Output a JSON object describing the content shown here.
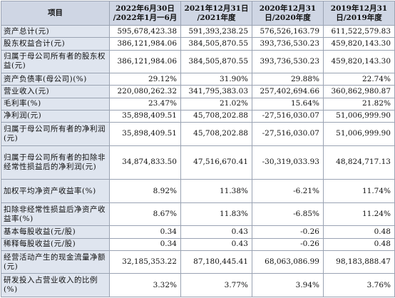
{
  "table": {
    "headers": [
      [
        "项目"
      ],
      [
        "2022年6月30日",
        "/2022年1月一6月"
      ],
      [
        "2021年12月31日",
        "/2021年度"
      ],
      [
        "2020年12月31",
        "日/2020年度"
      ],
      [
        "2019年12月31",
        "日/2019年度"
      ]
    ],
    "rows": [
      {
        "label": "资产总计(元)",
        "values": [
          "595,678,423.38",
          "591,393,238.25",
          "576,526,163.79",
          "611,522,579.83"
        ]
      },
      {
        "label": "股东权益合计(元)",
        "values": [
          "386,121,984.06",
          "384,505,870.55",
          "393,736,530.23",
          "459,820,143.30"
        ]
      },
      {
        "label": "归属于母公司所有者的股东权益(元)",
        "values": [
          "386,121,984.06",
          "384,505,870.55",
          "393,736,530.23",
          "459,820,143.30"
        ]
      },
      {
        "label": "资产负债率(母公司)(%)",
        "values": [
          "29.12%",
          "31.90%",
          "29.88%",
          "22.74%"
        ]
      },
      {
        "label": "营业收入(元)",
        "values": [
          "220,080,262.32",
          "341,795,383.03",
          "257,402,694.66",
          "360,862,980.87"
        ]
      },
      {
        "label": "毛利率(%)",
        "values": [
          "23.47%",
          "21.02%",
          "15.64%",
          "21.82%"
        ]
      },
      {
        "label": "净利润(元)",
        "values": [
          "35,898,409.51",
          "45,708,202.88",
          "-27,516,030.07",
          "51,006,999.90"
        ]
      },
      {
        "label": "归属于母公司所有者的净利润(元)",
        "values": [
          "35,898,409.51",
          "45,708,202.88",
          "-27,516,030.07",
          "51,006,999.90"
        ]
      },
      {
        "label": "归属于母公司所有者的扣除非经常性损益后的净利润(元)",
        "values": [
          "34,874,833.50",
          "47,516,670.41",
          "-30,319,033.93",
          "48,824,717.13"
        ]
      },
      {
        "label": "加权平均净资产收益率(%)",
        "values": [
          "8.92%",
          "11.38%",
          "-6.21%",
          "11.74%"
        ]
      },
      {
        "label": "扣除非经常性损益后净资产收益率(%)",
        "values": [
          "8.67%",
          "11.83%",
          "-6.85%",
          "11.24%"
        ]
      },
      {
        "label": "基本每股收益(元/股)",
        "values": [
          "0.34",
          "0.43",
          "-0.26",
          "0.48"
        ]
      },
      {
        "label": "稀释每股收益(元/股)",
        "values": [
          "0.34",
          "0.43",
          "-0.26",
          "0.48"
        ]
      },
      {
        "label": "经营活动产生的现金流量净额(元)",
        "values": [
          "32,185,353.22",
          "87,180,445.41",
          "68,063,086.99",
          "98,183,888.47"
        ]
      },
      {
        "label": "研发投入占营业收入的比例(%)",
        "values": [
          "3.32%",
          "3.77%",
          "3.94%",
          "3.76%"
        ]
      }
    ]
  }
}
